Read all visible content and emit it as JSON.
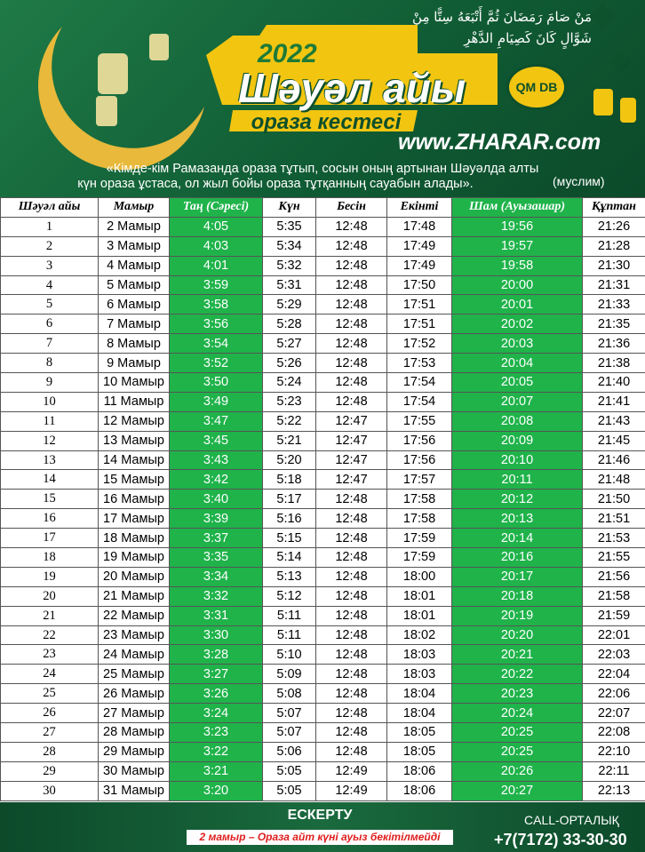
{
  "header": {
    "arabic_lines": [
      "مَنْ صَامَ رَمَضَانَ ثُمَّ أَتْبَعَهُ سِتًّا مِنْ",
      "شَوَّالٍ كَانَ كَصِيَامِ الدَّهْرِ"
    ],
    "year": "2022",
    "title": "Шәуәл айы",
    "subtitle": "ораза кестесі",
    "logo": "QM DB",
    "website": "www.ZHARAR.com",
    "quote_lines": [
      "«Кімде-кім Рамазанда ораза тұтып, сосын оның артынан Шәуәлда алты",
      "күн ораза ұстаса, ол жыл бойы ораза тұтқанның сауабын алады»."
    ],
    "source": "(муслим)"
  },
  "table": {
    "header": [
      "Шәуәл айы",
      "Мамыр",
      "Таң (Сәресі)",
      "Күн",
      "Бесін",
      "Екінті",
      "Шам (Ауызашар)",
      "Құптан"
    ],
    "rows": [
      [
        "1",
        "2 Мамыр",
        "4:05",
        "5:35",
        "12:48",
        "17:48",
        "19:56",
        "21:26"
      ],
      [
        "2",
        "3 Мамыр",
        "4:03",
        "5:34",
        "12:48",
        "17:49",
        "19:57",
        "21:28"
      ],
      [
        "3",
        "4 Мамыр",
        "4:01",
        "5:32",
        "12:48",
        "17:49",
        "19:58",
        "21:30"
      ],
      [
        "4",
        "5 Мамыр",
        "3:59",
        "5:31",
        "12:48",
        "17:50",
        "20:00",
        "21:31"
      ],
      [
        "5",
        "6 Мамыр",
        "3:58",
        "5:29",
        "12:48",
        "17:51",
        "20:01",
        "21:33"
      ],
      [
        "6",
        "7 Мамыр",
        "3:56",
        "5:28",
        "12:48",
        "17:51",
        "20:02",
        "21:35"
      ],
      [
        "7",
        "8 Мамыр",
        "3:54",
        "5:27",
        "12:48",
        "17:52",
        "20:03",
        "21:36"
      ],
      [
        "8",
        "9 Мамыр",
        "3:52",
        "5:26",
        "12:48",
        "17:53",
        "20:04",
        "21:38"
      ],
      [
        "9",
        "10 Мамыр",
        "3:50",
        "5:24",
        "12:48",
        "17:54",
        "20:05",
        "21:40"
      ],
      [
        "10",
        "11 Мамыр",
        "3:49",
        "5:23",
        "12:48",
        "17:54",
        "20:07",
        "21:41"
      ],
      [
        "11",
        "12 Мамыр",
        "3:47",
        "5:22",
        "12:47",
        "17:55",
        "20:08",
        "21:43"
      ],
      [
        "12",
        "13 Мамыр",
        "3:45",
        "5:21",
        "12:47",
        "17:56",
        "20:09",
        "21:45"
      ],
      [
        "13",
        "14 Мамыр",
        "3:43",
        "5:20",
        "12:47",
        "17:56",
        "20:10",
        "21:46"
      ],
      [
        "14",
        "15 Мамыр",
        "3:42",
        "5:18",
        "12:47",
        "17:57",
        "20:11",
        "21:48"
      ],
      [
        "15",
        "16 Мамыр",
        "3:40",
        "5:17",
        "12:48",
        "17:58",
        "20:12",
        "21:50"
      ],
      [
        "16",
        "17 Мамыр",
        "3:39",
        "5:16",
        "12:48",
        "17:58",
        "20:13",
        "21:51"
      ],
      [
        "17",
        "18 Мамыр",
        "3:37",
        "5:15",
        "12:48",
        "17:59",
        "20:14",
        "21:53"
      ],
      [
        "18",
        "19 Мамыр",
        "3:35",
        "5:14",
        "12:48",
        "17:59",
        "20:16",
        "21:55"
      ],
      [
        "19",
        "20 Мамыр",
        "3:34",
        "5:13",
        "12:48",
        "18:00",
        "20:17",
        "21:56"
      ],
      [
        "20",
        "21 Мамыр",
        "3:32",
        "5:12",
        "12:48",
        "18:01",
        "20:18",
        "21:58"
      ],
      [
        "21",
        "22 Мамыр",
        "3:31",
        "5:11",
        "12:48",
        "18:01",
        "20:19",
        "21:59"
      ],
      [
        "22",
        "23 Мамыр",
        "3:30",
        "5:11",
        "12:48",
        "18:02",
        "20:20",
        "22:01"
      ],
      [
        "23",
        "24 Мамыр",
        "3:28",
        "5:10",
        "12:48",
        "18:03",
        "20:21",
        "22:03"
      ],
      [
        "24",
        "25 Мамыр",
        "3:27",
        "5:09",
        "12:48",
        "18:03",
        "20:22",
        "22:04"
      ],
      [
        "25",
        "26 Мамыр",
        "3:26",
        "5:08",
        "12:48",
        "18:04",
        "20:23",
        "22:06"
      ],
      [
        "26",
        "27 Мамыр",
        "3:24",
        "5:07",
        "12:48",
        "18:04",
        "20:24",
        "22:07"
      ],
      [
        "27",
        "28 Мамыр",
        "3:23",
        "5:07",
        "12:48",
        "18:05",
        "20:25",
        "22:08"
      ],
      [
        "28",
        "29 Мамыр",
        "3:22",
        "5:06",
        "12:48",
        "18:05",
        "20:25",
        "22:10"
      ],
      [
        "29",
        "30 Мамыр",
        "3:21",
        "5:05",
        "12:49",
        "18:06",
        "20:26",
        "22:11"
      ],
      [
        "30",
        "31 Мамыр",
        "3:20",
        "5:05",
        "12:49",
        "18:06",
        "20:27",
        "22:13"
      ]
    ]
  },
  "footer": {
    "note_title": "ЕСКЕРТУ",
    "note": "2 мамыр – Ораза айт күні ауыз бекітілмейді",
    "call_label": "CALL-ОРТАЛЫҚ",
    "phone": "+7(7172) 33-30-30"
  }
}
